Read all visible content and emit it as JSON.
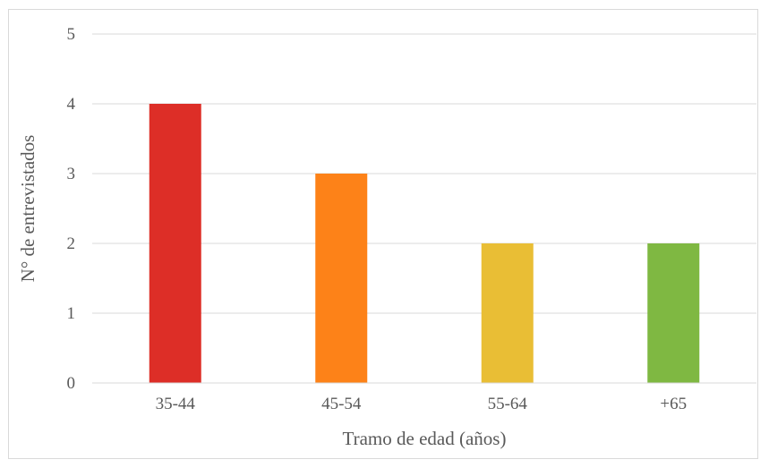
{
  "chart_data": {
    "type": "bar",
    "categories": [
      "35-44",
      "45-54",
      "55-64",
      "+65"
    ],
    "values": [
      4,
      3,
      2,
      2
    ],
    "colors": [
      "#dd2e27",
      "#fd8218",
      "#e9be35",
      "#7fb842"
    ],
    "title": "",
    "xlabel": "Tramo de edad (años)",
    "ylabel": "N° de entrevistados",
    "ylim": [
      0,
      5
    ],
    "yticks": [
      "0",
      "1",
      "2",
      "3",
      "4",
      "5"
    ],
    "grid": true,
    "legend": "none"
  }
}
